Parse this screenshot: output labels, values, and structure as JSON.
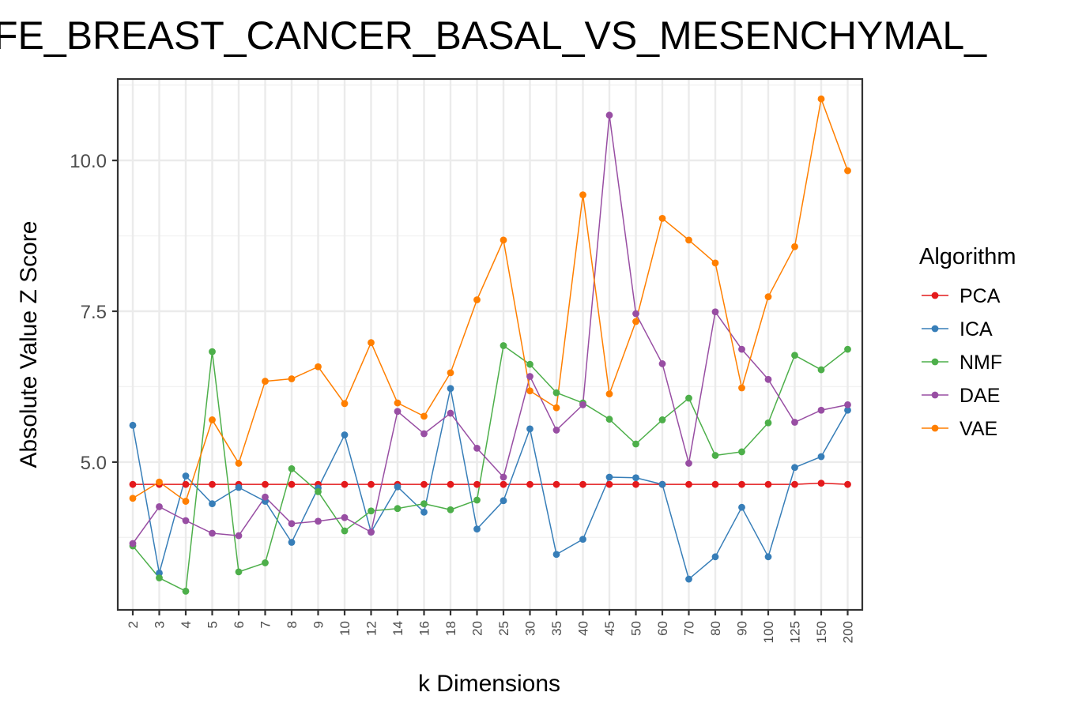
{
  "chart_data": {
    "type": "line",
    "title": "FE_BREAST_CANCER_BASAL_VS_MESENCHYMAL_",
    "xlabel": "k Dimensions",
    "ylabel": "Absolute Value Z Score",
    "categories": [
      "2",
      "3",
      "4",
      "5",
      "6",
      "7",
      "8",
      "9",
      "10",
      "12",
      "14",
      "16",
      "18",
      "20",
      "25",
      "30",
      "35",
      "40",
      "45",
      "50",
      "60",
      "70",
      "80",
      "90",
      "100",
      "125",
      "150",
      "200"
    ],
    "ylim": [
      2.55,
      11.35
    ],
    "yticks": [
      5.0,
      7.5,
      10.0
    ],
    "ytick_labels": [
      "5.0",
      "7.5",
      "10.0"
    ],
    "grid": true,
    "legend": {
      "title": "Algorithm",
      "position": "right"
    },
    "series": [
      {
        "name": "PCA",
        "color": "#e41a1c",
        "values": [
          4.63,
          4.63,
          4.63,
          4.63,
          4.63,
          4.63,
          4.63,
          4.63,
          4.63,
          4.63,
          4.63,
          4.63,
          4.63,
          4.63,
          4.63,
          4.63,
          4.63,
          4.63,
          4.63,
          4.63,
          4.63,
          4.63,
          4.63,
          4.63,
          4.63,
          4.63,
          4.65,
          4.63
        ]
      },
      {
        "name": "ICA",
        "color": "#377eb8",
        "values": [
          5.61,
          3.16,
          4.77,
          4.31,
          4.58,
          4.35,
          3.67,
          4.57,
          5.45,
          3.84,
          4.59,
          4.17,
          6.22,
          3.89,
          4.36,
          5.55,
          3.47,
          3.72,
          4.75,
          4.74,
          4.63,
          3.06,
          3.43,
          4.25,
          3.43,
          4.91,
          5.09,
          5.86
        ]
      },
      {
        "name": "NMF",
        "color": "#4daf4a",
        "values": [
          3.61,
          3.08,
          2.86,
          6.83,
          3.18,
          3.33,
          4.89,
          4.51,
          3.86,
          4.19,
          4.23,
          4.31,
          4.21,
          4.37,
          6.93,
          6.62,
          6.15,
          5.98,
          5.71,
          5.3,
          5.7,
          6.06,
          5.11,
          5.17,
          5.65,
          6.77,
          6.53,
          6.87
        ]
      },
      {
        "name": "DAE",
        "color": "#984ea3",
        "values": [
          3.65,
          4.26,
          4.03,
          3.82,
          3.78,
          4.42,
          3.98,
          4.02,
          4.08,
          3.84,
          5.84,
          5.47,
          5.81,
          5.23,
          4.75,
          6.42,
          5.53,
          5.95,
          10.75,
          7.46,
          6.63,
          4.98,
          7.49,
          6.87,
          6.37,
          5.66,
          5.86,
          5.95
        ]
      },
      {
        "name": "VAE",
        "color": "#ff7f00",
        "values": [
          4.4,
          4.67,
          4.35,
          5.7,
          4.98,
          6.34,
          6.38,
          6.58,
          5.97,
          6.98,
          5.98,
          5.76,
          6.48,
          7.69,
          8.68,
          6.18,
          5.9,
          9.43,
          6.13,
          7.33,
          9.04,
          8.68,
          8.3,
          6.23,
          7.74,
          8.57,
          11.02,
          9.83
        ]
      }
    ]
  }
}
